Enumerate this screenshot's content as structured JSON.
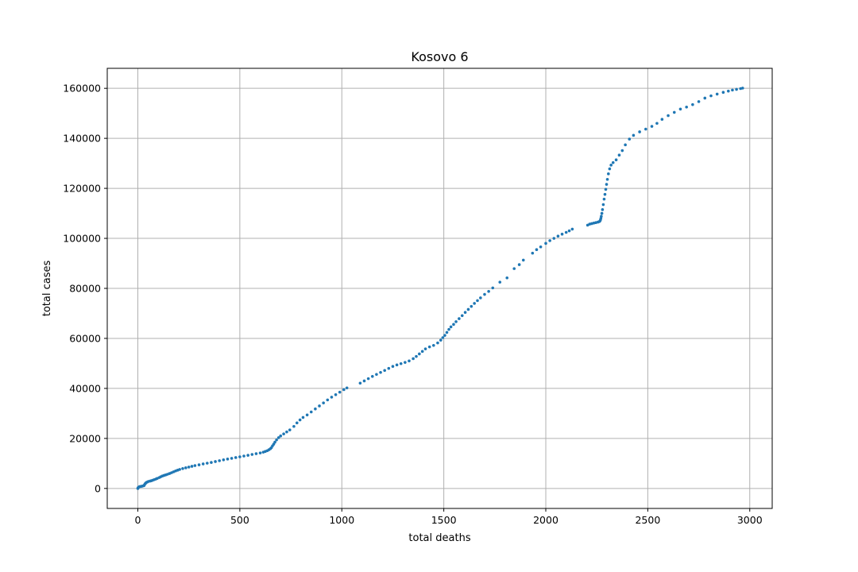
{
  "chart_data": {
    "type": "scatter",
    "title": "Kosovo 6",
    "xlabel": "total deaths",
    "ylabel": "total cases",
    "xlim": [
      -150,
      3110
    ],
    "ylim": [
      -8000,
      168000
    ],
    "xticks": [
      0,
      500,
      1000,
      1500,
      2000,
      2500,
      3000
    ],
    "yticks": [
      0,
      20000,
      40000,
      60000,
      80000,
      100000,
      120000,
      140000,
      160000
    ],
    "grid": true,
    "marker_color": "#1f77b4",
    "series": [
      {
        "points": [
          [
            0,
            0
          ],
          [
            1,
            300
          ],
          [
            5,
            600
          ],
          [
            10,
            750
          ],
          [
            15,
            800
          ],
          [
            20,
            900
          ],
          [
            25,
            1000
          ],
          [
            30,
            1100
          ],
          [
            32,
            1400
          ],
          [
            35,
            1800
          ],
          [
            38,
            2100
          ],
          [
            42,
            2400
          ],
          [
            47,
            2600
          ],
          [
            52,
            2800
          ],
          [
            60,
            2950
          ],
          [
            65,
            3050
          ],
          [
            72,
            3250
          ],
          [
            80,
            3500
          ],
          [
            88,
            3750
          ],
          [
            95,
            4000
          ],
          [
            105,
            4350
          ],
          [
            112,
            4650
          ],
          [
            120,
            4950
          ],
          [
            128,
            5200
          ],
          [
            136,
            5400
          ],
          [
            145,
            5650
          ],
          [
            155,
            5950
          ],
          [
            165,
            6300
          ],
          [
            175,
            6650
          ],
          [
            185,
            7000
          ],
          [
            195,
            7300
          ],
          [
            205,
            7600
          ],
          [
            220,
            7950
          ],
          [
            235,
            8250
          ],
          [
            250,
            8550
          ],
          [
            265,
            8850
          ],
          [
            280,
            9150
          ],
          [
            300,
            9450
          ],
          [
            320,
            9800
          ],
          [
            340,
            10100
          ],
          [
            360,
            10400
          ],
          [
            380,
            10750
          ],
          [
            400,
            11100
          ],
          [
            420,
            11450
          ],
          [
            440,
            11750
          ],
          [
            460,
            12050
          ],
          [
            480,
            12350
          ],
          [
            500,
            12650
          ],
          [
            520,
            12950
          ],
          [
            540,
            13250
          ],
          [
            560,
            13600
          ],
          [
            580,
            13900
          ],
          [
            600,
            14200
          ],
          [
            615,
            14500
          ],
          [
            625,
            14800
          ],
          [
            635,
            15100
          ],
          [
            643,
            15500
          ],
          [
            650,
            15900
          ],
          [
            655,
            16300
          ],
          [
            660,
            17000
          ],
          [
            666,
            17700
          ],
          [
            672,
            18500
          ],
          [
            680,
            19400
          ],
          [
            690,
            20300
          ],
          [
            700,
            21000
          ],
          [
            715,
            21800
          ],
          [
            730,
            22600
          ],
          [
            745,
            23400
          ],
          [
            765,
            24800
          ],
          [
            780,
            26200
          ],
          [
            795,
            27400
          ],
          [
            810,
            28400
          ],
          [
            830,
            29400
          ],
          [
            850,
            30600
          ],
          [
            870,
            31800
          ],
          [
            890,
            33000
          ],
          [
            910,
            34200
          ],
          [
            930,
            35400
          ],
          [
            950,
            36500
          ],
          [
            970,
            37500
          ],
          [
            990,
            38500
          ],
          [
            1010,
            39500
          ],
          [
            1025,
            40200
          ],
          [
            1090,
            42100
          ],
          [
            1110,
            43000
          ],
          [
            1130,
            43900
          ],
          [
            1150,
            44800
          ],
          [
            1170,
            45600
          ],
          [
            1190,
            46400
          ],
          [
            1210,
            47200
          ],
          [
            1230,
            48000
          ],
          [
            1250,
            48800
          ],
          [
            1270,
            49400
          ],
          [
            1290,
            49900
          ],
          [
            1310,
            50400
          ],
          [
            1330,
            51000
          ],
          [
            1350,
            51900
          ],
          [
            1365,
            52800
          ],
          [
            1380,
            53800
          ],
          [
            1395,
            54800
          ],
          [
            1410,
            55800
          ],
          [
            1430,
            56600
          ],
          [
            1450,
            57200
          ],
          [
            1470,
            58200
          ],
          [
            1485,
            59300
          ],
          [
            1495,
            60300
          ],
          [
            1505,
            61200
          ],
          [
            1515,
            62400
          ],
          [
            1525,
            63600
          ],
          [
            1535,
            64600
          ],
          [
            1548,
            65600
          ],
          [
            1560,
            66700
          ],
          [
            1575,
            67900
          ],
          [
            1590,
            69100
          ],
          [
            1605,
            70400
          ],
          [
            1620,
            71600
          ],
          [
            1635,
            72800
          ],
          [
            1650,
            74000
          ],
          [
            1665,
            75100
          ],
          [
            1680,
            76200
          ],
          [
            1700,
            77600
          ],
          [
            1720,
            78800
          ],
          [
            1740,
            80200
          ],
          [
            1775,
            82500
          ],
          [
            1810,
            84200
          ],
          [
            1845,
            87900
          ],
          [
            1870,
            89500
          ],
          [
            1890,
            91300
          ],
          [
            1935,
            94100
          ],
          [
            1955,
            95500
          ],
          [
            1975,
            96600
          ],
          [
            2000,
            98000
          ],
          [
            2020,
            99100
          ],
          [
            2040,
            100000
          ],
          [
            2060,
            100900
          ],
          [
            2080,
            101700
          ],
          [
            2100,
            102400
          ],
          [
            2115,
            103000
          ],
          [
            2130,
            103700
          ],
          [
            2205,
            105300
          ],
          [
            2215,
            105700
          ],
          [
            2225,
            105900
          ],
          [
            2235,
            106100
          ],
          [
            2245,
            106300
          ],
          [
            2255,
            106500
          ],
          [
            2262,
            106700
          ],
          [
            2266,
            107000
          ],
          [
            2268,
            107400
          ],
          [
            2270,
            108000
          ],
          [
            2272,
            108800
          ],
          [
            2275,
            110000
          ],
          [
            2278,
            111500
          ],
          [
            2282,
            113500
          ],
          [
            2286,
            115700
          ],
          [
            2290,
            117600
          ],
          [
            2294,
            119600
          ],
          [
            2298,
            121600
          ],
          [
            2302,
            123600
          ],
          [
            2307,
            125800
          ],
          [
            2313,
            127800
          ],
          [
            2320,
            129300
          ],
          [
            2330,
            130300
          ],
          [
            2345,
            131400
          ],
          [
            2360,
            133300
          ],
          [
            2375,
            135100
          ],
          [
            2390,
            137400
          ],
          [
            2410,
            139700
          ],
          [
            2430,
            141200
          ],
          [
            2460,
            142600
          ],
          [
            2490,
            143700
          ],
          [
            2520,
            144800
          ],
          [
            2545,
            146000
          ],
          [
            2570,
            147600
          ],
          [
            2600,
            149100
          ],
          [
            2630,
            150400
          ],
          [
            2660,
            151700
          ],
          [
            2690,
            152500
          ],
          [
            2720,
            153500
          ],
          [
            2750,
            154700
          ],
          [
            2780,
            156100
          ],
          [
            2810,
            157000
          ],
          [
            2840,
            157700
          ],
          [
            2870,
            158400
          ],
          [
            2895,
            158900
          ],
          [
            2915,
            159300
          ],
          [
            2935,
            159600
          ],
          [
            2955,
            159900
          ],
          [
            2965,
            160100
          ]
        ]
      }
    ]
  }
}
